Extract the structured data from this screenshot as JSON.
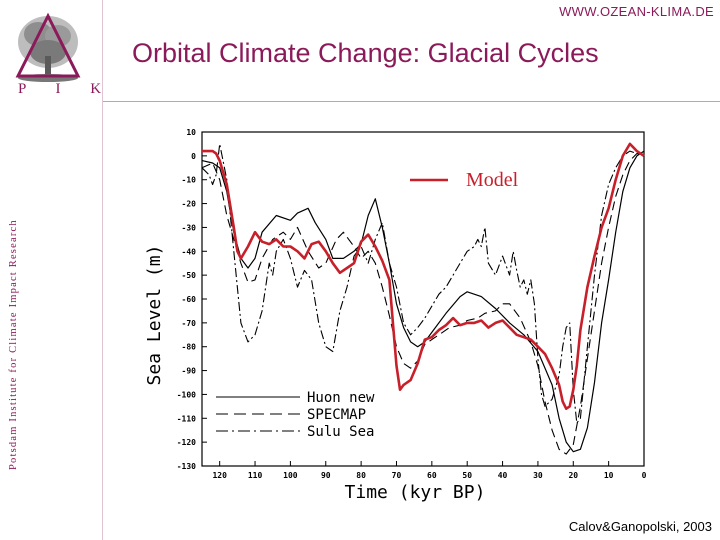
{
  "header": {
    "url": "WWW.OZEAN-KLIMA.DE",
    "title": "Orbital Climate Change: Glacial Cycles",
    "logo_letters": "P I K",
    "institute": "Potsdam Institute for Climate Impact Research"
  },
  "footer": {
    "credit": "Calov&Ganopolski, 2003"
  },
  "colors": {
    "brand": "#8b1a5a",
    "model": "#c8202a",
    "data": "#000000"
  },
  "chart_data": {
    "type": "line",
    "title": "",
    "xlabel": "Time (kyr BP)",
    "ylabel": "Sea Level (m)",
    "xlim": [
      125,
      0
    ],
    "ylim": [
      -130,
      10
    ],
    "x_ticks": [
      120,
      110,
      100,
      90,
      80,
      70,
      60,
      50,
      40,
      30,
      20,
      10,
      0
    ],
    "y_ticks": [
      10,
      0,
      -10,
      -20,
      -30,
      -40,
      -50,
      -60,
      -70,
      -80,
      -90,
      -100,
      -110,
      -120,
      -130
    ],
    "legend_placement": "bottom-left",
    "series": [
      {
        "name": "Model",
        "style": "solid-red",
        "x": [
          125,
          124,
          122,
          121,
          120,
          118,
          116,
          115,
          114,
          112,
          110,
          108,
          106,
          104,
          102,
          100,
          98,
          96,
          94,
          92,
          90,
          88,
          86,
          84,
          82,
          80,
          78,
          76,
          74,
          72,
          71,
          70,
          69,
          68,
          66,
          64,
          62,
          60,
          58,
          56,
          54,
          52,
          50,
          48,
          46,
          44,
          42,
          40,
          38,
          36,
          34,
          32,
          30,
          28,
          26,
          24,
          23,
          22,
          21,
          20,
          19,
          18,
          16,
          14,
          12,
          10,
          8,
          6,
          4,
          2,
          0
        ],
        "y": [
          2,
          2,
          2,
          1,
          -2,
          -12,
          -30,
          -40,
          -43,
          -38,
          -32,
          -36,
          -37,
          -35,
          -38,
          -38,
          -40,
          -43,
          -37,
          -36,
          -40,
          -45,
          -49,
          -47,
          -45,
          -36,
          -33,
          -38,
          -44,
          -52,
          -70,
          -88,
          -98,
          -96,
          -94,
          -87,
          -77,
          -76,
          -73,
          -71,
          -68,
          -71,
          -70,
          -70,
          -69,
          -72,
          -70,
          -69,
          -72,
          -75,
          -76,
          -77,
          -80,
          -83,
          -89,
          -96,
          -103,
          -106,
          -105,
          -98,
          -88,
          -73,
          -55,
          -42,
          -30,
          -22,
          -10,
          0,
          5,
          2,
          0
        ]
      },
      {
        "name": "Huon new",
        "style": "solid",
        "x": [
          125,
          122,
          120,
          118,
          116,
          114,
          112,
          110,
          108,
          104,
          100,
          98,
          95,
          93,
          90,
          88,
          85,
          82,
          80,
          78,
          76,
          74,
          72,
          70,
          68,
          66,
          64,
          62,
          60,
          56,
          52,
          50,
          46,
          42,
          38,
          34,
          30,
          26,
          24,
          22,
          20,
          18,
          16,
          14,
          12,
          10,
          8,
          6,
          4,
          2,
          0
        ],
        "y": [
          -2,
          -3,
          -5,
          -15,
          -32,
          -43,
          -47,
          -43,
          -32,
          -25,
          -27,
          -24,
          -22,
          -28,
          -35,
          -43,
          -43,
          -40,
          -37,
          -25,
          -18,
          -30,
          -45,
          -62,
          -72,
          -78,
          -80,
          -78,
          -74,
          -66,
          -59,
          -57,
          -59,
          -64,
          -70,
          -75,
          -82,
          -96,
          -110,
          -120,
          -124,
          -123,
          -114,
          -95,
          -70,
          -52,
          -32,
          -15,
          -5,
          0,
          2
        ]
      },
      {
        "name": "SPECMAP",
        "style": "dashed",
        "x": [
          125,
          122,
          120,
          118,
          116,
          114,
          112,
          110,
          108,
          105,
          102,
          100,
          98,
          95,
          92,
          90,
          87,
          85,
          82,
          80,
          78,
          76,
          74,
          72,
          70,
          68,
          66,
          64,
          62,
          60,
          58,
          55,
          52,
          50,
          47,
          45,
          42,
          40,
          38,
          35,
          32,
          30,
          28,
          26,
          24,
          22,
          20,
          18,
          16,
          14,
          12,
          10,
          8,
          6,
          4,
          2,
          0
        ],
        "y": [
          -5,
          -3,
          -10,
          -25,
          -35,
          -45,
          -53,
          -52,
          -43,
          -35,
          -32,
          -35,
          -30,
          -40,
          -47,
          -45,
          -35,
          -32,
          -38,
          -43,
          -40,
          -45,
          -55,
          -67,
          -80,
          -87,
          -89,
          -86,
          -79,
          -77,
          -75,
          -72,
          -71,
          -69,
          -68,
          -66,
          -65,
          -62,
          -62,
          -68,
          -78,
          -88,
          -103,
          -115,
          -123,
          -125,
          -121,
          -105,
          -85,
          -65,
          -45,
          -30,
          -17,
          -8,
          -2,
          1,
          2
        ]
      },
      {
        "name": "Sulu Sea",
        "style": "dash-dot",
        "x": [
          125,
          123,
          122,
          121,
          120,
          118,
          116,
          114,
          112,
          110,
          108,
          106,
          105,
          104,
          102,
          100,
          98,
          96,
          94,
          92,
          90,
          88,
          86,
          84,
          82,
          80,
          78,
          76,
          74,
          72,
          70,
          68,
          66,
          64,
          62,
          60,
          58,
          56,
          54,
          52,
          50,
          48,
          47,
          46,
          45,
          44,
          42,
          40,
          38,
          37,
          36,
          35,
          34,
          33,
          32,
          31,
          30,
          29,
          28,
          26,
          24,
          23,
          22,
          21,
          20,
          19,
          18,
          16,
          14,
          12,
          10,
          8,
          6,
          4,
          2,
          0
        ],
        "y": [
          -5,
          -8,
          -12,
          -8,
          5,
          -10,
          -40,
          -70,
          -78,
          -75,
          -65,
          -45,
          -50,
          -40,
          -35,
          -43,
          -55,
          -48,
          -52,
          -70,
          -80,
          -82,
          -65,
          -55,
          -42,
          -38,
          -45,
          -35,
          -28,
          -45,
          -55,
          -70,
          -75,
          -72,
          -68,
          -63,
          -58,
          -55,
          -50,
          -45,
          -40,
          -38,
          -35,
          -38,
          -30,
          -45,
          -50,
          -42,
          -50,
          -40,
          -48,
          -55,
          -52,
          -58,
          -52,
          -62,
          -85,
          -100,
          -105,
          -102,
          -92,
          -80,
          -72,
          -70,
          -98,
          -112,
          -110,
          -80,
          -50,
          -25,
          -12,
          -5,
          0,
          2,
          1,
          0
        ]
      }
    ]
  }
}
